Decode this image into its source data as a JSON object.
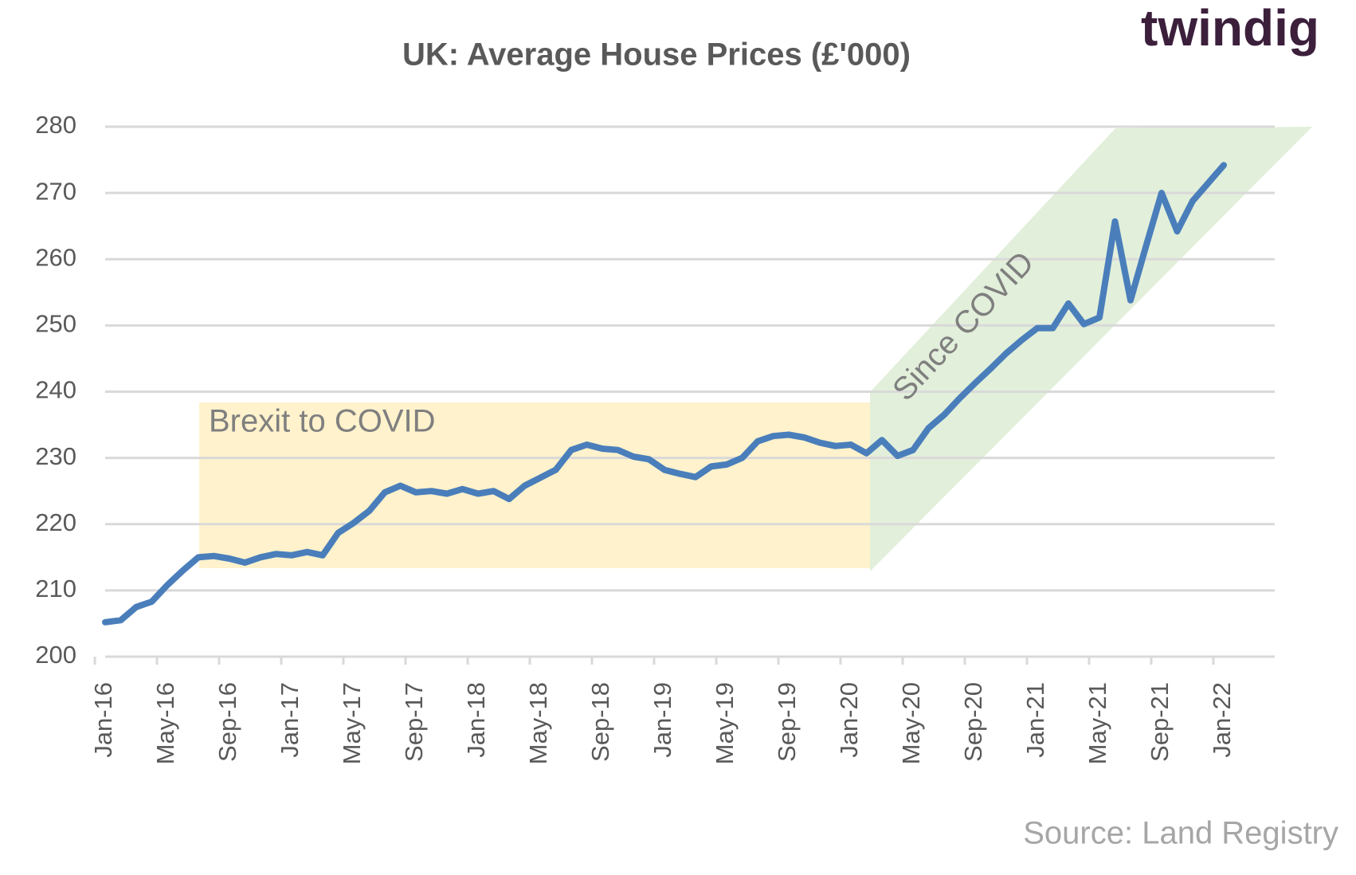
{
  "chart_data": {
    "type": "line",
    "title": "UK: Average House Prices (£'000)",
    "logo": "twindig",
    "annotations": [
      "Brexit to COVID",
      "Since COVID"
    ],
    "source": "Source: Land Registry",
    "categories": [
      "Jan-16",
      null,
      null,
      null,
      "May-16",
      null,
      null,
      null,
      "Sep-16",
      null,
      null,
      null,
      "Jan-17",
      null,
      null,
      null,
      "May-17",
      null,
      null,
      null,
      "Sep-17",
      null,
      null,
      null,
      "Jan-18",
      null,
      null,
      null,
      "May-18",
      null,
      null,
      null,
      "Sep-18",
      null,
      null,
      null,
      "Jan-19",
      null,
      null,
      null,
      "May-19",
      null,
      null,
      null,
      "Sep-19",
      null,
      null,
      null,
      "Jan-20",
      null,
      null,
      null,
      "May-20",
      null,
      null,
      null,
      "Sep-20",
      null,
      null,
      null,
      "Jan-21",
      null,
      null,
      null,
      "May-21",
      null,
      null,
      null,
      "Sep-21",
      null,
      null,
      null,
      "Jan-22"
    ],
    "values": [
      205.2,
      205.5,
      207.5,
      208.3,
      210.8,
      213,
      215,
      215.2,
      214.8,
      214.2,
      215,
      215.5,
      215.3,
      215.8,
      215.3,
      218.7,
      220.2,
      222,
      224.8,
      225.8,
      224.8,
      225,
      224.6,
      225.3,
      224.6,
      225,
      223.8,
      225.8,
      227,
      228.2,
      231.2,
      232,
      231.4,
      231.2,
      230.2,
      229.8,
      228.2,
      227.6,
      227.1,
      228.7,
      229,
      230,
      232.5,
      233.3,
      233.5,
      233.1,
      232.3,
      231.8,
      232,
      230.7,
      232.7,
      230.3,
      231.2,
      234.5,
      236.5,
      239,
      241.3,
      243.5,
      245.8,
      247.8,
      249.6,
      249.6,
      253.3,
      250.2,
      251.2,
      265.7,
      253.8,
      262,
      270,
      264.2,
      268.8,
      271.5,
      274.2
    ],
    "color": "#4a7ebb",
    "ylim": [
      200,
      280
    ],
    "yticks": [
      200,
      210,
      220,
      230,
      240,
      250,
      260,
      270,
      280
    ],
    "grid": true
  }
}
